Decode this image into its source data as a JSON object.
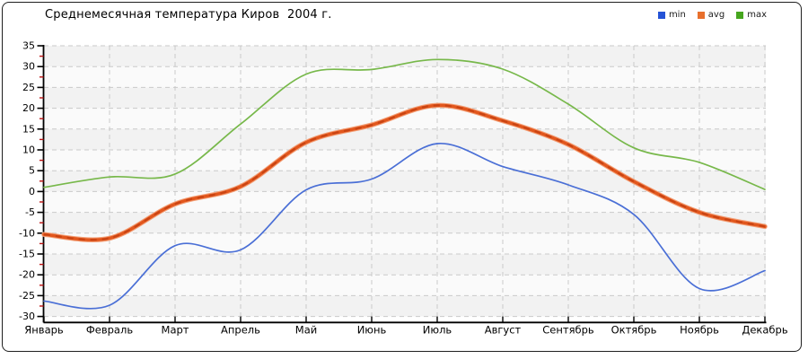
{
  "chart_data": {
    "type": "line",
    "title": "Среднемесячная температура Киров  2004 г.",
    "categories": [
      "Январь",
      "Февраль",
      "Март",
      "Апрель",
      "Май",
      "Июнь",
      "Июль",
      "Август",
      "Сентябрь",
      "Октябрь",
      "Ноябрь",
      "Декабрь"
    ],
    "series": [
      {
        "name": "min",
        "color": "#4a6fd6",
        "legend_color": "#2453d6",
        "values": [
          -26.3,
          -27.3,
          -13.0,
          -14.0,
          0.4,
          3.0,
          11.5,
          6.0,
          1.6,
          -5.5,
          -23.3,
          -19.0
        ]
      },
      {
        "name": "avg",
        "color": "#e2571d",
        "legend_color": "#e8702d",
        "halo_color": "#f3a078",
        "dash_color": "#c94413",
        "values": [
          -10.3,
          -11.2,
          -3.0,
          1.2,
          11.8,
          16.0,
          20.7,
          17.0,
          11.3,
          2.4,
          -5.0,
          -8.4
        ]
      },
      {
        "name": "max",
        "color": "#77b84a",
        "legend_color": "#46a61e",
        "values": [
          1.0,
          3.5,
          4.2,
          16.2,
          28.2,
          29.3,
          31.7,
          29.4,
          21.0,
          10.5,
          7.0,
          0.5
        ]
      }
    ],
    "xlabel": "",
    "ylabel": "",
    "ylim": [
      -30,
      35
    ],
    "y_tick_step": 5,
    "y_minor_tick_step": 2.5,
    "grid": "dashed",
    "legend_position": "top-right",
    "smoothing": "spline"
  },
  "style_colors": {
    "grid": "#c9c9c9",
    "band_dark": "#f2f2f2",
    "band_light": "#fafafa",
    "axis": "#000000",
    "minor_tick": "#bb1111",
    "tick_label": "#000000"
  }
}
